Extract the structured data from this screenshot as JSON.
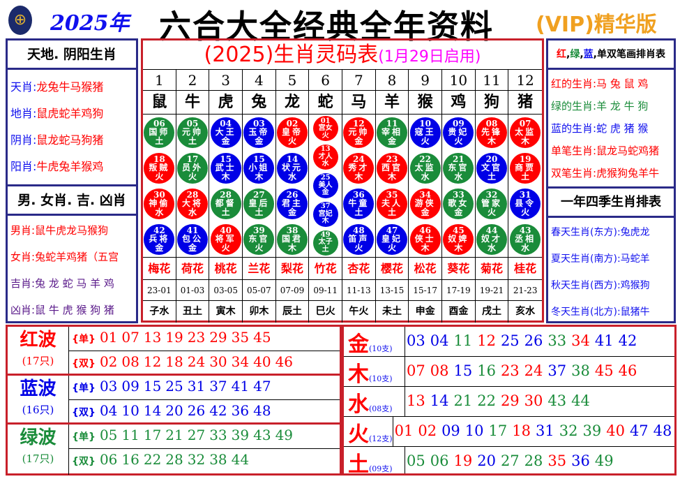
{
  "header": {
    "year": "2025年",
    "title": "六合大全经典全年资料",
    "vip": "(VIP)精华版"
  },
  "left": {
    "head1": "天地. 阴阳生肖",
    "items1": [
      {
        "k": "天肖",
        "v": "龙兔牛马猴猪"
      },
      {
        "k": "地肖",
        "v": "鼠虎蛇羊鸡狗"
      },
      {
        "k": "阴肖",
        "v": "鼠龙蛇马狗猪"
      },
      {
        "k": "阳肖",
        "v": "牛虎兔羊猴鸡"
      }
    ],
    "head2": "男. 女肖. 吉. 凶肖",
    "items2": [
      {
        "k": "男肖",
        "v": "鼠牛虎龙马猴狗"
      },
      {
        "k": "女肖",
        "v": "兔蛇羊鸡猪（五宫"
      },
      {
        "k": "吉肖",
        "v": "兔 龙 蛇 马 羊 鸡"
      },
      {
        "k": "凶肖",
        "v": "鼠 牛 虎 猴 狗 猪"
      }
    ]
  },
  "right": {
    "head1_parts": [
      "红",
      "绿",
      "蓝",
      "单双笔画排肖表"
    ],
    "items1": [
      {
        "k": "红的生肖",
        "v": "马 兔 鼠 鸡",
        "c": "#f00"
      },
      {
        "k": "绿的生肖",
        "v": "羊 龙 牛 狗",
        "c": "#1a8c3a"
      },
      {
        "k": "蓝的生肖",
        "v": "蛇 虎 猪 猴",
        "c": "#1010ee"
      },
      {
        "k": "单笔生肖",
        "v": "鼠龙马蛇鸡猪",
        "c": "#f00"
      },
      {
        "k": "双笔生肖",
        "v": "虎猴狗兔羊牛",
        "c": "#f00"
      }
    ],
    "head2": "一年四季生肖排表",
    "items2": [
      {
        "k": "春天生肖(东方)",
        "v": "兔虎龙"
      },
      {
        "k": "夏天生肖(南方)",
        "v": "马蛇羊"
      },
      {
        "k": "秋天生肖(西方)",
        "v": "鸡猴狗"
      },
      {
        "k": "冬天生肖(北方)",
        "v": "鼠猪牛"
      }
    ]
  },
  "center": {
    "title": "(2025)生肖灵码表",
    "subtitle": "(1月29日启用)",
    "columns": [
      {
        "no": "1",
        "z": "鼠",
        "flower": "梅花",
        "time": "23-01",
        "branch": "子水",
        "balls": [
          {
            "n": "06",
            "name": "国师",
            "el": "土",
            "c": "g"
          },
          {
            "n": "18",
            "name": "叛贼",
            "el": "火",
            "c": "r"
          },
          {
            "n": "30",
            "name": "神偷",
            "el": "水",
            "c": "r"
          },
          {
            "n": "42",
            "name": "兵将",
            "el": "金",
            "c": "b"
          }
        ]
      },
      {
        "no": "2",
        "z": "牛",
        "flower": "荷花",
        "time": "01-03",
        "branch": "丑土",
        "balls": [
          {
            "n": "05",
            "name": "元帅",
            "el": "土",
            "c": "g"
          },
          {
            "n": "17",
            "name": "员外",
            "el": "火",
            "c": "g"
          },
          {
            "n": "28",
            "name": "大将",
            "el": "水",
            "c": "r"
          },
          {
            "n": "41",
            "name": "包公",
            "el": "金",
            "c": "b"
          }
        ]
      },
      {
        "no": "3",
        "z": "虎",
        "flower": "桃花",
        "time": "03-05",
        "branch": "寅木",
        "balls": [
          {
            "n": "04",
            "name": "大王",
            "el": "金",
            "c": "b"
          },
          {
            "n": "15",
            "name": "武士",
            "el": "木",
            "c": "b"
          },
          {
            "n": "28",
            "name": "都督",
            "el": "土",
            "c": "g"
          },
          {
            "n": "40",
            "name": "将军",
            "el": "火",
            "c": "r"
          }
        ]
      },
      {
        "no": "4",
        "z": "兔",
        "flower": "兰花",
        "time": "05-07",
        "branch": "卯木",
        "balls": [
          {
            "n": "03",
            "name": "玉帝",
            "el": "金",
            "c": "b"
          },
          {
            "n": "15",
            "name": "小姐",
            "el": "木",
            "c": "b"
          },
          {
            "n": "27",
            "name": "皇后",
            "el": "土",
            "c": "g"
          },
          {
            "n": "39",
            "name": "东官",
            "el": "火",
            "c": "g"
          }
        ]
      },
      {
        "no": "5",
        "z": "龙",
        "flower": "梨花",
        "time": "07-09",
        "branch": "辰土",
        "balls": [
          {
            "n": "02",
            "name": "皇帝",
            "el": "火",
            "c": "r"
          },
          {
            "n": "14",
            "name": "状元",
            "el": "水",
            "c": "b"
          },
          {
            "n": "26",
            "name": "君主",
            "el": "金",
            "c": "b"
          },
          {
            "n": "38",
            "name": "国君",
            "el": "木",
            "c": "g"
          }
        ]
      },
      {
        "no": "6",
        "z": "蛇",
        "flower": "竹花",
        "time": "09-11",
        "branch": "巳火",
        "balls": [
          {
            "n": "01",
            "name": "宫女",
            "el": "火",
            "c": "r"
          },
          {
            "n": "13",
            "name": "才人",
            "el": "水",
            "c": "r"
          },
          {
            "n": "25",
            "name": "美人",
            "el": "金",
            "c": "b"
          },
          {
            "n": "37",
            "name": "宫妃",
            "el": "木",
            "c": "b"
          },
          {
            "n": "49",
            "name": "太子",
            "el": "土",
            "c": "g"
          }
        ]
      },
      {
        "no": "7",
        "z": "马",
        "flower": "杏花",
        "time": "11-13",
        "branch": "午火",
        "balls": [
          {
            "n": "12",
            "name": "元帅",
            "el": "金",
            "c": "r"
          },
          {
            "n": "24",
            "name": "秀才",
            "el": "木",
            "c": "r"
          },
          {
            "n": "36",
            "name": "牛童",
            "el": "土",
            "c": "b"
          },
          {
            "n": "48",
            "name": "笛声",
            "el": "火",
            "c": "b"
          }
        ]
      },
      {
        "no": "8",
        "z": "羊",
        "flower": "樱花",
        "time": "13-15",
        "branch": "未土",
        "balls": [
          {
            "n": "11",
            "name": "宰相",
            "el": "金",
            "c": "g"
          },
          {
            "n": "23",
            "name": "西官",
            "el": "木",
            "c": "r"
          },
          {
            "n": "35",
            "name": "夫人",
            "el": "土",
            "c": "r"
          },
          {
            "n": "47",
            "name": "皇妃",
            "el": "火",
            "c": "b"
          }
        ]
      },
      {
        "no": "9",
        "z": "猴",
        "flower": "松花",
        "time": "15-17",
        "branch": "申金",
        "balls": [
          {
            "n": "10",
            "name": "寇王",
            "el": "火",
            "c": "b"
          },
          {
            "n": "22",
            "name": "太监",
            "el": "水",
            "c": "g"
          },
          {
            "n": "34",
            "name": "游侠",
            "el": "金",
            "c": "r"
          },
          {
            "n": "46",
            "name": "侠士",
            "el": "木",
            "c": "r"
          }
        ]
      },
      {
        "no": "10",
        "z": "鸡",
        "flower": "葵花",
        "time": "17-19",
        "branch": "酉金",
        "balls": [
          {
            "n": "09",
            "name": "贵妃",
            "el": "火",
            "c": "b"
          },
          {
            "n": "21",
            "name": "东官",
            "el": "水",
            "c": "g"
          },
          {
            "n": "33",
            "name": "歌女",
            "el": "金",
            "c": "g"
          },
          {
            "n": "45",
            "name": "奴婢",
            "el": "木",
            "c": "r"
          }
        ]
      },
      {
        "no": "11",
        "z": "狗",
        "flower": "菊花",
        "time": "19-21",
        "branch": "戌土",
        "balls": [
          {
            "n": "08",
            "name": "先锋",
            "el": "木",
            "c": "r"
          },
          {
            "n": "20",
            "name": "文官",
            "el": "土",
            "c": "b"
          },
          {
            "n": "32",
            "name": "管家",
            "el": "火",
            "c": "g"
          },
          {
            "n": "44",
            "name": "奴才",
            "el": "水",
            "c": "g"
          }
        ]
      },
      {
        "no": "12",
        "z": "猪",
        "flower": "桂花",
        "time": "21-23",
        "branch": "亥水",
        "balls": [
          {
            "n": "07",
            "name": "太监",
            "el": "木",
            "c": "r"
          },
          {
            "n": "19",
            "name": "商贾",
            "el": "土",
            "c": "r"
          },
          {
            "n": "31",
            "name": "县令",
            "el": "火",
            "c": "b"
          },
          {
            "n": "43",
            "name": "丞相",
            "el": "水",
            "c": "g"
          }
        ]
      }
    ]
  },
  "colors": {
    "r": "#ff0000",
    "g": "#1a8c3a",
    "b": "#0000e6",
    "border": "#c8202a",
    "panel": "#2a2a88",
    "vip": "#f0a020",
    "magenta": "#ff00ff"
  },
  "waves": [
    {
      "name": "红波",
      "count": "(17只)",
      "c": "r",
      "rows": [
        {
          "tag": "{单}",
          "nums": [
            "01",
            "07",
            "13",
            "19",
            "23",
            "29",
            "35",
            "45"
          ]
        },
        {
          "tag": "{双}",
          "nums": [
            "02",
            "08",
            "12",
            "18",
            "24",
            "30",
            "34",
            "40",
            "46"
          ]
        }
      ]
    },
    {
      "name": "蓝波",
      "count": "(16只)",
      "c": "b",
      "rows": [
        {
          "tag": "{单}",
          "nums": [
            "03",
            "09",
            "15",
            "25",
            "31",
            "37",
            "41",
            "47"
          ]
        },
        {
          "tag": "{双}",
          "nums": [
            "04",
            "10",
            "14",
            "20",
            "26",
            "42",
            "36",
            "48"
          ]
        }
      ]
    },
    {
      "name": "绿波",
      "count": "(17只)",
      "c": "g",
      "rows": [
        {
          "tag": "{单}",
          "nums": [
            "05",
            "11",
            "17",
            "21",
            "27",
            "33",
            "39",
            "43",
            "49"
          ]
        },
        {
          "tag": "{双}",
          "nums": [
            "06",
            "16",
            "22",
            "28",
            "32",
            "38",
            "44"
          ]
        }
      ]
    }
  ],
  "elements": [
    {
      "name": "金",
      "count": "(10支)",
      "nums": [
        "03",
        "04",
        "11",
        "12",
        "25",
        "26",
        "33",
        "34",
        "41",
        "42"
      ]
    },
    {
      "name": "木",
      "count": "(10支)",
      "nums": [
        "07",
        "08",
        "15",
        "16",
        "23",
        "24",
        "37",
        "38",
        "45",
        "46"
      ]
    },
    {
      "name": "水",
      "count": "(08支)",
      "nums": [
        "13",
        "14",
        "21",
        "22",
        "29",
        "30",
        "43",
        "44"
      ]
    },
    {
      "name": "火",
      "count": "(12支)",
      "nums": [
        "01",
        "02",
        "09",
        "10",
        "17",
        "18",
        "31",
        "32",
        "39",
        "40",
        "47",
        "48"
      ]
    },
    {
      "name": "土",
      "count": "(09支)",
      "nums": [
        "05",
        "06",
        "19",
        "20",
        "27",
        "28",
        "35",
        "36",
        "49"
      ]
    }
  ]
}
